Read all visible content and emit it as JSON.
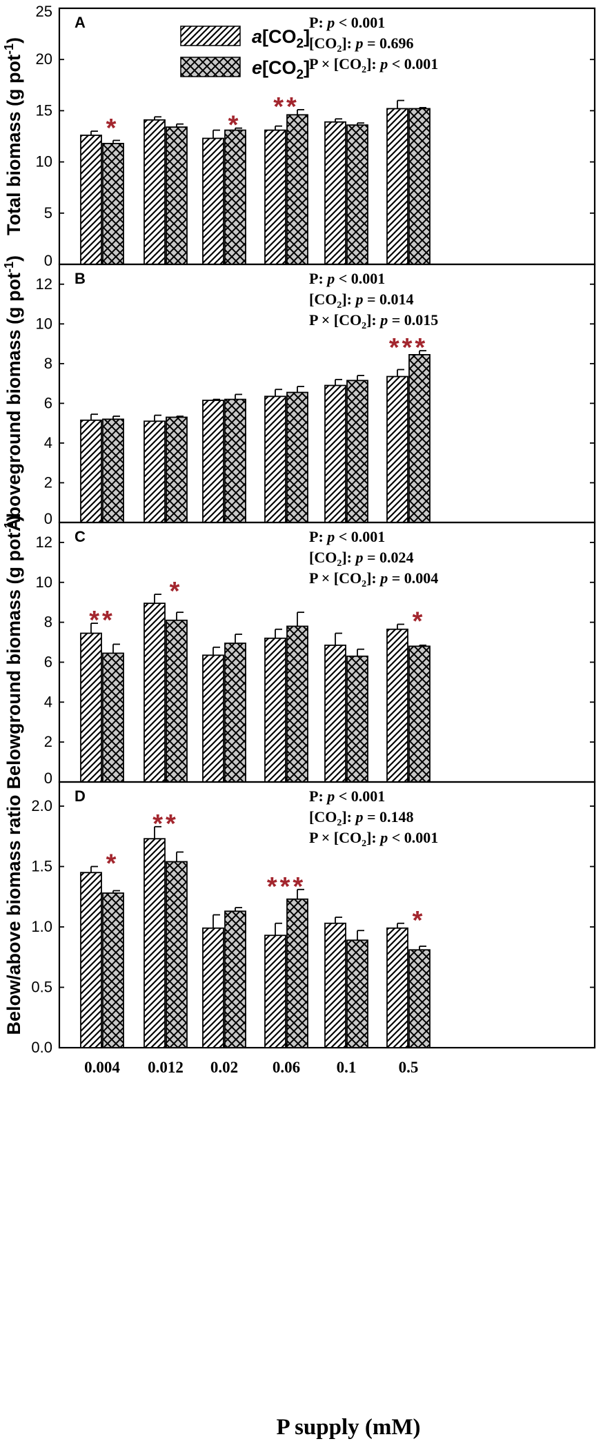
{
  "figure": {
    "xlabel": "P supply (mM)",
    "categories": [
      "0.004",
      "0.012",
      "0.02",
      "0.06",
      "0.1",
      "0.5"
    ],
    "legend": {
      "ambient_prefix": "a",
      "ambient_suffix": "[CO",
      "ambient_sub": "2",
      "ambient_close": "]",
      "elevated_prefix": "e",
      "elevated_suffix": "[CO",
      "elevated_sub": "2",
      "elevated_close": "]"
    },
    "colors": {
      "ambient_fill": "#ffffff",
      "elevated_fill": "#c8c8c8",
      "star": "#a3262e",
      "ink": "#000000"
    }
  },
  "chart_data": [
    {
      "type": "bar",
      "panel": "A",
      "ylabel_main": "Total biomass (g pot",
      "ylabel_sup": "-1",
      "ylabel_close": ")",
      "ylim": [
        0,
        25
      ],
      "yticks": [
        "0",
        "5",
        "10",
        "15",
        "20",
        "25"
      ],
      "categories": [
        "0.004",
        "0.012",
        "0.02",
        "0.06",
        "0.1",
        "0.5"
      ],
      "series": [
        {
          "name": "a[CO2]",
          "values": [
            12.6,
            14.1,
            12.3,
            13.1,
            13.9,
            15.2
          ],
          "errors": [
            0.4,
            0.3,
            0.8,
            0.4,
            0.3,
            0.8
          ]
        },
        {
          "name": "e[CO2]",
          "values": [
            11.8,
            13.4,
            13.1,
            14.6,
            13.6,
            15.2
          ],
          "errors": [
            0.3,
            0.3,
            0.2,
            0.5,
            0.2,
            0.1
          ]
        }
      ],
      "significance": [
        "*",
        "",
        "*",
        "**",
        "",
        ""
      ],
      "stats": [
        {
          "label": "P: ",
          "p": "p",
          "rel": " < 0.001"
        },
        {
          "label": "[CO",
          "sub": "2",
          "close": "]: ",
          "p": "p",
          "rel": " = 0.696"
        },
        {
          "label": "P × [CO",
          "sub": "2",
          "close": "]: ",
          "p": "p",
          "rel": " < 0.001"
        }
      ]
    },
    {
      "type": "bar",
      "panel": "B",
      "ylabel_main": "Aboveground biomass (g pot",
      "ylabel_sup": "-1",
      "ylabel_close": ")",
      "ylim": [
        0,
        13
      ],
      "yticks": [
        "0",
        "2",
        "4",
        "6",
        "8",
        "10",
        "12"
      ],
      "categories": [
        "0.004",
        "0.012",
        "0.02",
        "0.06",
        "0.1",
        "0.5"
      ],
      "series": [
        {
          "name": "a[CO2]",
          "values": [
            5.15,
            5.1,
            6.15,
            6.35,
            6.9,
            7.35
          ],
          "errors": [
            0.3,
            0.3,
            0.05,
            0.35,
            0.3,
            0.35
          ]
        },
        {
          "name": "e[CO2]",
          "values": [
            5.2,
            5.3,
            6.2,
            6.55,
            7.15,
            8.45
          ],
          "errors": [
            0.15,
            0.05,
            0.25,
            0.3,
            0.25,
            0.2
          ]
        }
      ],
      "significance": [
        "",
        "",
        "",
        "",
        "",
        "***"
      ],
      "stats": [
        {
          "label": "P: ",
          "p": "p",
          "rel": " < 0.001"
        },
        {
          "label": "[CO",
          "sub": "2",
          "close": "]: ",
          "p": "p",
          "rel": " = 0.014"
        },
        {
          "label": "P × [CO",
          "sub": "2",
          "close": "]: ",
          "p": "p",
          "rel": " = 0.015"
        }
      ]
    },
    {
      "type": "bar",
      "panel": "C",
      "ylabel_main": "Belowground biomass (g pot",
      "ylabel_sup": "-1",
      "ylabel_close": ")",
      "ylim": [
        0,
        13
      ],
      "yticks": [
        "0",
        "2",
        "4",
        "6",
        "8",
        "10",
        "12"
      ],
      "categories": [
        "0.004",
        "0.012",
        "0.02",
        "0.06",
        "0.1",
        "0.5"
      ],
      "series": [
        {
          "name": "a[CO2]",
          "values": [
            7.45,
            8.95,
            6.35,
            7.2,
            6.85,
            7.65
          ],
          "errors": [
            0.5,
            0.45,
            0.4,
            0.45,
            0.6,
            0.25
          ]
        },
        {
          "name": "e[CO2]",
          "values": [
            6.45,
            8.1,
            6.95,
            7.8,
            6.3,
            6.8
          ],
          "errors": [
            0.45,
            0.4,
            0.45,
            0.7,
            0.35,
            0.05
          ]
        }
      ],
      "significance": [
        "**",
        "*",
        "",
        "",
        "",
        "*"
      ],
      "stats": [
        {
          "label": "P: ",
          "p": "p",
          "rel": " < 0.001"
        },
        {
          "label": "[CO",
          "sub": "2",
          "close": "]: ",
          "p": "p",
          "rel": " = 0.024"
        },
        {
          "label": "P × [CO",
          "sub": "2",
          "close": "]: ",
          "p": "p",
          "rel": " = 0.004"
        }
      ]
    },
    {
      "type": "bar",
      "panel": "D",
      "ylabel_main": "Below/above biomass ratio",
      "ylabel_sup": "",
      "ylabel_close": "",
      "ylim": [
        0,
        2.2
      ],
      "yticks": [
        "0.0",
        "0.5",
        "1.0",
        "1.5",
        "2.0"
      ],
      "categories": [
        "0.004",
        "0.012",
        "0.02",
        "0.06",
        "0.1",
        "0.5"
      ],
      "series": [
        {
          "name": "a[CO2]",
          "values": [
            1.45,
            1.73,
            0.99,
            0.93,
            1.03,
            0.99
          ],
          "errors": [
            0.05,
            0.1,
            0.11,
            0.1,
            0.05,
            0.04
          ]
        },
        {
          "name": "e[CO2]",
          "values": [
            1.28,
            1.54,
            1.13,
            1.23,
            0.89,
            0.81
          ],
          "errors": [
            0.02,
            0.08,
            0.03,
            0.08,
            0.08,
            0.03
          ]
        }
      ],
      "significance": [
        "*",
        "**",
        "",
        "***",
        "",
        "*"
      ],
      "stats": [
        {
          "label": "P: ",
          "p": "p",
          "rel": " < 0.001"
        },
        {
          "label": "[CO",
          "sub": "2",
          "close": "]: ",
          "p": "p",
          "rel": " = 0.148"
        },
        {
          "label": "P × [CO",
          "sub": "2",
          "close": "]: ",
          "p": "p",
          "rel": " < 0.001"
        }
      ]
    }
  ]
}
